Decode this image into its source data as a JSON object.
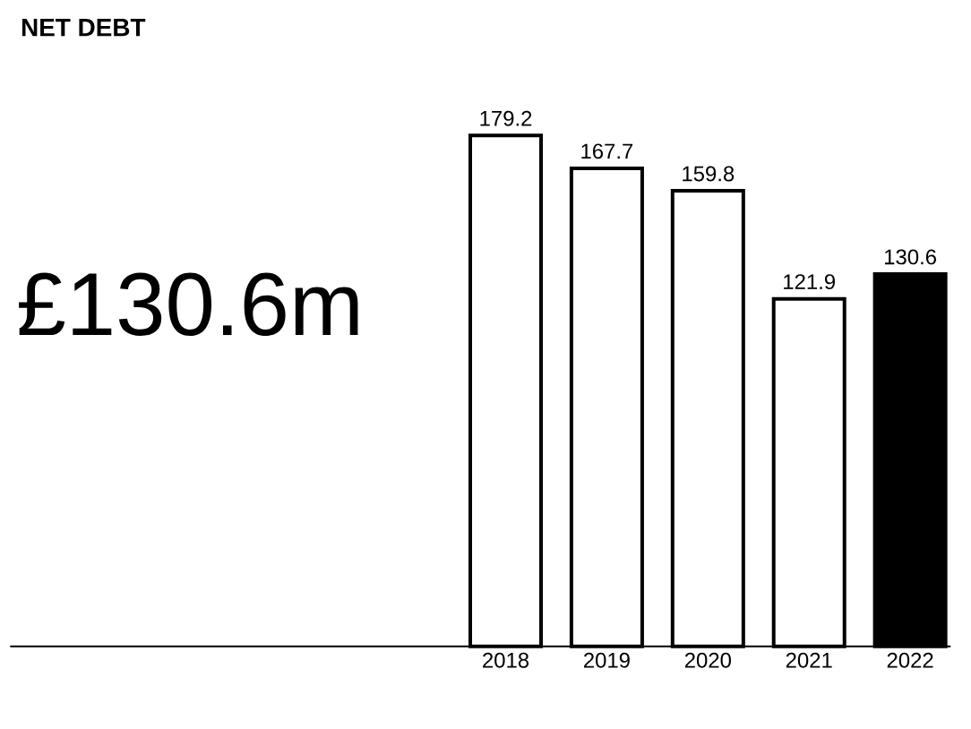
{
  "chart_data": {
    "type": "bar",
    "title": "NET DEBT",
    "annotations": [
      "£130.6m"
    ],
    "categories": [
      "2018",
      "2019",
      "2020",
      "2021",
      "2022"
    ],
    "values": [
      179.2,
      167.7,
      159.8,
      121.9,
      130.6
    ],
    "colors": [
      "#ffffff",
      "#ffffff",
      "#ffffff",
      "#ffffff",
      "#000000"
    ],
    "data_labels": true
  }
}
